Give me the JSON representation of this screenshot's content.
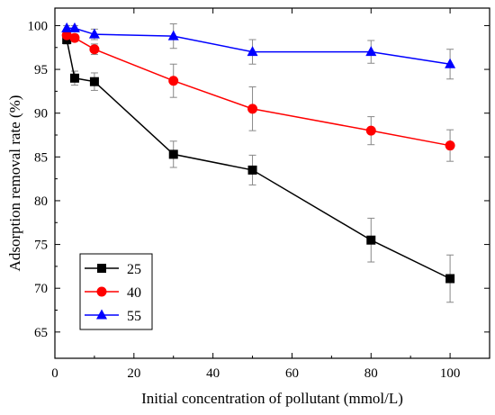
{
  "chart_data": {
    "type": "line",
    "title": "",
    "xlabel": "Initial concentration of pollutant (mmol/L)",
    "ylabel": "Adsorption removal rate (%)",
    "xlim": [
      0,
      110
    ],
    "ylim": [
      62,
      102
    ],
    "xticks": [
      0,
      20,
      40,
      60,
      80,
      100
    ],
    "yticks": [
      65,
      70,
      75,
      80,
      85,
      90,
      95,
      100
    ],
    "grid": false,
    "legend_position": "bottom-left",
    "x": [
      3,
      5,
      10,
      30,
      50,
      80,
      100
    ],
    "series": [
      {
        "name": "25",
        "color": "#000000",
        "marker": "square",
        "values": [
          98.4,
          94.0,
          93.6,
          85.3,
          83.5,
          75.5,
          71.1
        ],
        "errors": [
          0.5,
          0.8,
          1.0,
          1.5,
          1.7,
          2.5,
          2.7
        ]
      },
      {
        "name": "40",
        "color": "#ff0000",
        "marker": "circle",
        "values": [
          98.9,
          98.6,
          97.3,
          93.7,
          90.5,
          88.0,
          86.3
        ],
        "errors": [
          0.4,
          0.4,
          0.6,
          1.9,
          2.5,
          1.6,
          1.8
        ]
      },
      {
        "name": "55",
        "color": "#0000ff",
        "marker": "triangle",
        "values": [
          99.7,
          99.7,
          99.0,
          98.8,
          97.0,
          97.0,
          95.6
        ],
        "errors": [
          0.3,
          0.3,
          0.6,
          1.4,
          1.4,
          1.3,
          1.7
        ]
      }
    ]
  }
}
